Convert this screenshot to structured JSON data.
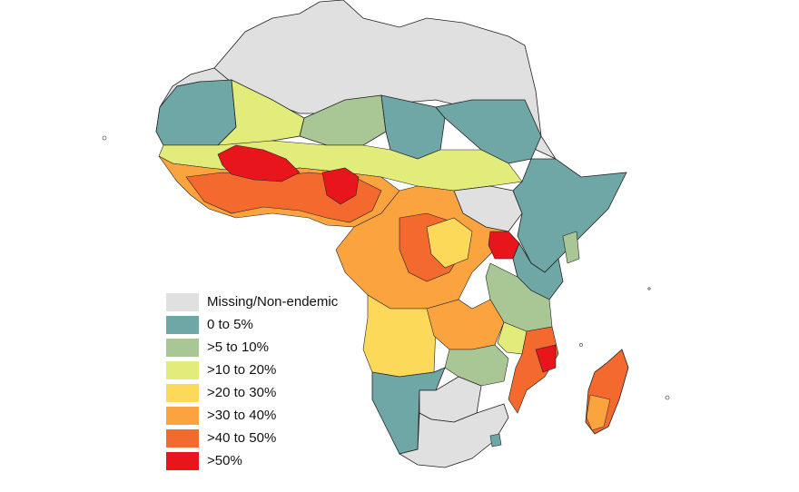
{
  "legend": {
    "items": [
      {
        "label": "Missing/Non-endemic",
        "color": "#e0e0e0"
      },
      {
        "label": "0 to 5%",
        "color": "#6fa6a6"
      },
      {
        "label": ">5 to 10%",
        "color": "#a8c795"
      },
      {
        "label": ">10 to 20%",
        "color": "#e2ec7a"
      },
      {
        "label": ">20 to 30%",
        "color": "#fdd95a"
      },
      {
        "label": ">30 to 40%",
        "color": "#fba43f"
      },
      {
        "label": ">40 to 50%",
        "color": "#f4692e"
      },
      {
        "label": ">50%",
        "color": "#e8151c"
      }
    ]
  }
}
